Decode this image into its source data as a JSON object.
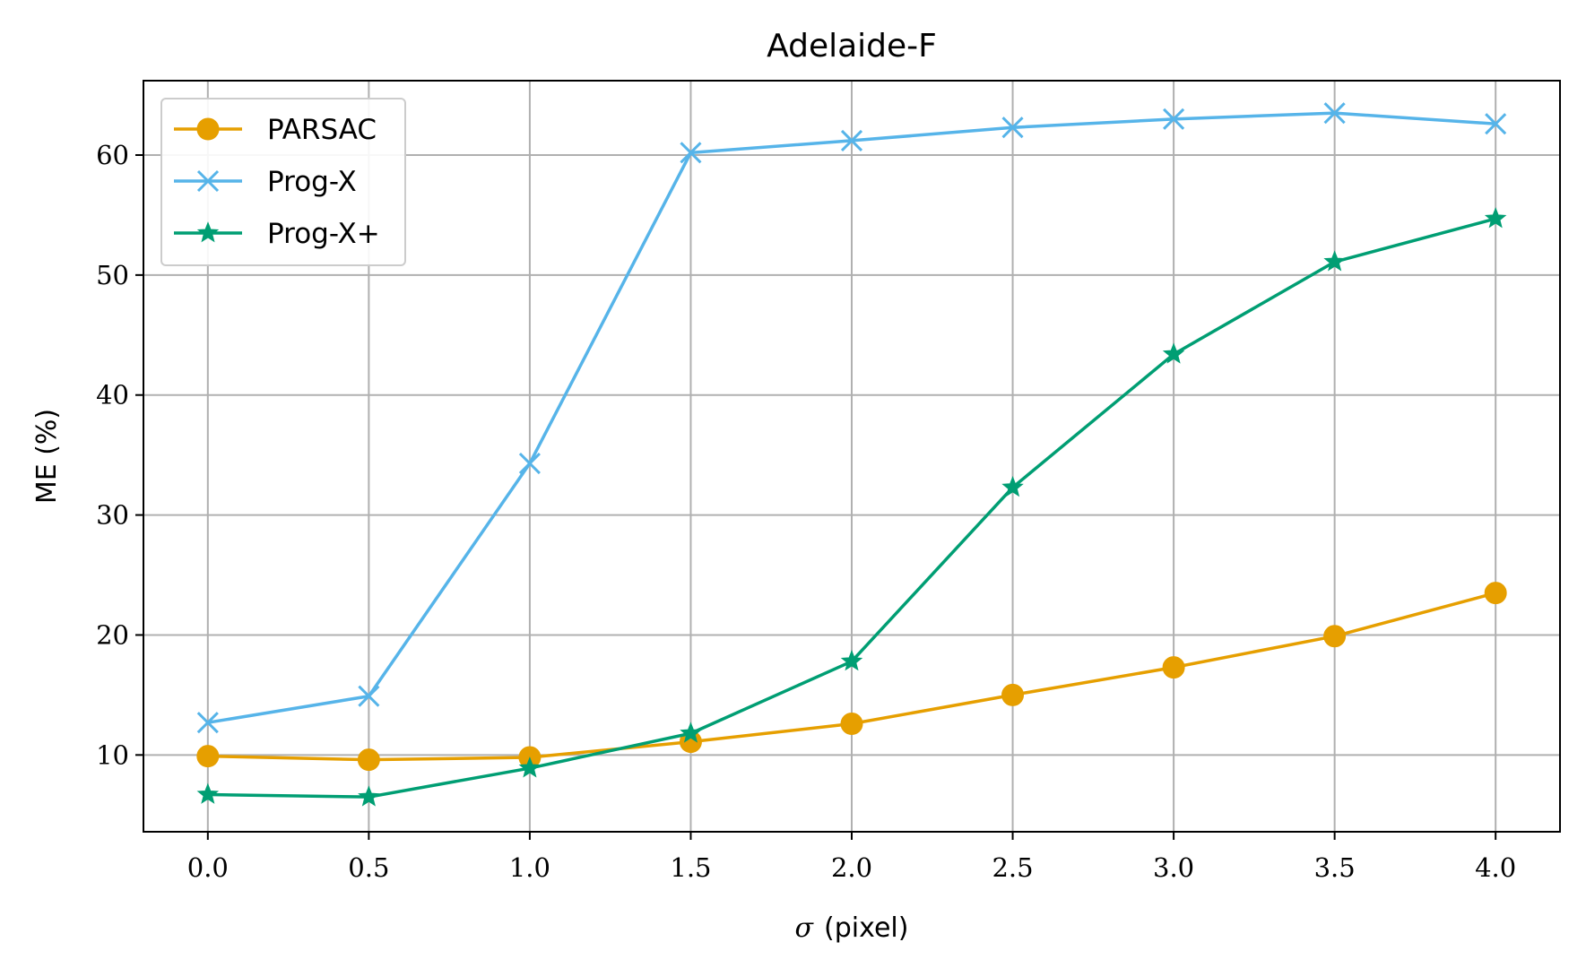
{
  "chart_data": {
    "type": "line",
    "title": "Adelaide-F",
    "xlabel_symbol": "σ",
    "xlabel_unit": "(pixel)",
    "ylabel": "ME (%)",
    "x": [
      0.0,
      0.5,
      1.0,
      1.5,
      2.0,
      2.5,
      3.0,
      3.5,
      4.0
    ],
    "x_tick_labels": [
      "0.0",
      "0.5",
      "1.0",
      "1.5",
      "2.0",
      "2.5",
      "3.0",
      "3.5",
      "4.0"
    ],
    "y_ticks": [
      10,
      20,
      30,
      40,
      50,
      60
    ],
    "xlim": [
      -0.2,
      4.2
    ],
    "ylim": [
      3.6,
      66.2
    ],
    "grid": true,
    "legend_position": "top-left",
    "series": [
      {
        "name": "PARSAC",
        "color": "#E69F00",
        "marker": "circle",
        "values": [
          9.9,
          9.6,
          9.8,
          11.1,
          12.6,
          15.0,
          17.3,
          19.9,
          23.5
        ]
      },
      {
        "name": "Prog-X",
        "color": "#56B4E9",
        "marker": "x",
        "values": [
          12.7,
          14.9,
          34.3,
          60.2,
          61.2,
          62.3,
          63.0,
          63.5,
          62.6
        ]
      },
      {
        "name": "Prog-X+",
        "color": "#009E73",
        "marker": "star",
        "values": [
          6.7,
          6.5,
          8.9,
          11.8,
          17.8,
          32.3,
          43.4,
          51.1,
          54.7
        ]
      }
    ]
  }
}
